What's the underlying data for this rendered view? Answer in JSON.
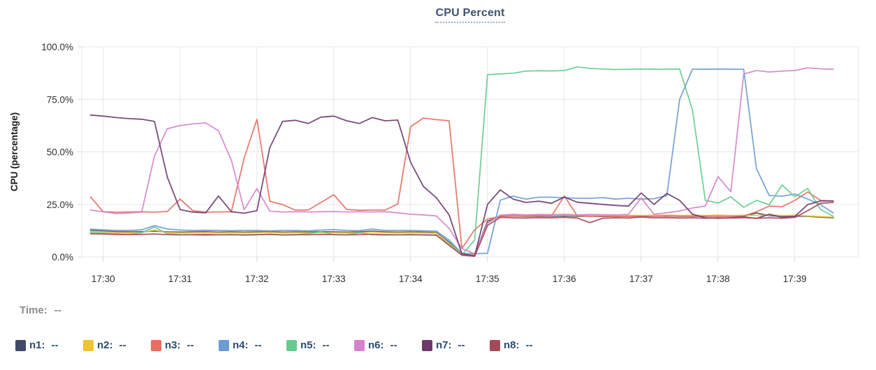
{
  "chart_data": {
    "type": "line",
    "title": "CPU Percent",
    "ylabel": "CPU (percentage)",
    "ylim": [
      0,
      100
    ],
    "y_tick_values": [
      0,
      25,
      50,
      75,
      100
    ],
    "y_tick_labels": [
      "0.0%",
      "25.0%",
      "50.0%",
      "75.0%",
      "100.0%"
    ],
    "x_tick_labels": [
      "17:30",
      "17:31",
      "17:32",
      "17:33",
      "17:34",
      "17:35",
      "17:36",
      "17:37",
      "17:38",
      "17:39"
    ],
    "x_tick_minutes": [
      0,
      1,
      2,
      3,
      4,
      5,
      6,
      7,
      8,
      9
    ],
    "x_range_minutes": [
      -0.28,
      9.83
    ],
    "x_start_minutes_after_17_30": -0.1667,
    "x_step_minutes": 0.1667,
    "grid": "on",
    "series": [
      {
        "name": "n1",
        "color": "#3e4a66",
        "values": [
          12.6,
          12.3,
          12.0,
          11.9,
          12.0,
          12.3,
          11.9,
          11.8,
          11.9,
          12.0,
          11.8,
          11.9,
          11.8,
          11.9,
          12.0,
          11.8,
          11.9,
          11.8,
          12.0,
          11.9,
          11.8,
          11.9,
          12.3,
          11.9,
          11.8,
          11.9,
          11.8,
          11.6,
          7.0,
          1.2,
          1.0,
          17.0,
          19.3,
          19.5,
          19.3,
          19.4,
          19.3,
          19.5,
          19.3,
          19.4,
          19.2,
          19.3,
          19.4,
          19.3,
          19.4,
          19.5,
          19.3,
          19.4,
          19.3,
          19.5,
          19.3,
          19.4,
          20.9,
          19.6,
          19.3,
          19.4,
          19.3,
          18.9,
          18.6
        ]
      },
      {
        "name": "n2",
        "color": "#f2c230",
        "values": [
          12.2,
          11.9,
          11.6,
          11.5,
          11.6,
          12.8,
          11.6,
          11.4,
          11.5,
          11.6,
          11.4,
          11.5,
          11.4,
          11.5,
          11.6,
          11.4,
          11.5,
          11.4,
          11.6,
          11.5,
          11.4,
          11.5,
          11.8,
          11.5,
          11.4,
          11.5,
          11.4,
          11.3,
          6.5,
          1.3,
          1.1,
          16.0,
          19.8,
          19.9,
          19.7,
          19.8,
          19.7,
          19.9,
          19.7,
          19.8,
          19.6,
          19.7,
          19.8,
          19.7,
          19.8,
          19.9,
          19.7,
          19.8,
          19.7,
          19.9,
          19.7,
          19.8,
          19.7,
          19.9,
          19.7,
          19.8,
          19.5,
          19.2,
          18.9
        ]
      },
      {
        "name": "n3",
        "color": "#e76e62",
        "values": [
          28.6,
          21.5,
          21.3,
          21.4,
          21.5,
          21.3,
          21.6,
          27.5,
          22.0,
          21.3,
          21.4,
          21.5,
          47.0,
          65.5,
          26.5,
          24.9,
          22.3,
          22.3,
          25.9,
          29.6,
          22.6,
          22.2,
          22.3,
          22.3,
          25.2,
          62.0,
          66.1,
          65.3,
          64.8,
          4.0,
          13.0,
          18.0,
          19.3,
          19.5,
          19.4,
          19.6,
          19.5,
          29.0,
          19.6,
          19.3,
          19.4,
          19.2,
          19.3,
          19.4,
          19.3,
          19.5,
          19.4,
          19.3,
          19.4,
          19.3,
          19.3,
          19.5,
          21.5,
          24.2,
          23.9,
          26.9,
          30.9,
          26.9,
          26.6
        ]
      },
      {
        "name": "n4",
        "color": "#6b9bd2",
        "values": [
          13.2,
          12.9,
          12.6,
          12.6,
          12.9,
          14.9,
          13.3,
          12.8,
          12.6,
          12.7,
          12.6,
          12.5,
          12.6,
          12.6,
          12.4,
          12.6,
          12.6,
          12.4,
          12.8,
          13.0,
          12.6,
          12.5,
          13.3,
          12.6,
          12.6,
          12.6,
          12.4,
          12.3,
          8.0,
          1.7,
          1.5,
          1.7,
          27.0,
          28.9,
          27.5,
          28.4,
          28.4,
          28.2,
          27.9,
          27.9,
          28.2,
          27.5,
          27.9,
          27.5,
          27.7,
          29.2,
          75.0,
          89.3,
          89.3,
          89.4,
          89.3,
          89.3,
          42.0,
          29.2,
          28.9,
          29.9,
          27.5,
          24.9,
          20.9
        ]
      },
      {
        "name": "n5",
        "color": "#66cb8e",
        "values": [
          11.6,
          11.3,
          11.0,
          10.8,
          11.5,
          14.3,
          11.0,
          10.6,
          10.5,
          10.3,
          10.5,
          10.6,
          10.3,
          10.5,
          10.8,
          10.4,
          10.5,
          11.0,
          12.0,
          10.6,
          10.5,
          11.5,
          10.5,
          10.4,
          10.5,
          10.6,
          10.4,
          10.3,
          6.0,
          1.0,
          8.0,
          86.7,
          87.1,
          87.4,
          88.4,
          88.6,
          88.5,
          88.7,
          90.4,
          89.7,
          89.4,
          89.2,
          89.3,
          89.4,
          89.3,
          89.3,
          89.4,
          70.0,
          27.0,
          25.6,
          28.6,
          23.6,
          26.9,
          24.9,
          34.2,
          28.6,
          32.6,
          22.6,
          19.3
        ]
      },
      {
        "name": "n6",
        "color": "#d583cb",
        "values": [
          22.3,
          21.5,
          20.6,
          20.9,
          21.3,
          48.0,
          61.0,
          62.5,
          63.3,
          63.8,
          60.0,
          46.0,
          22.5,
          32.5,
          21.8,
          21.4,
          21.5,
          21.4,
          21.5,
          21.6,
          21.4,
          21.5,
          21.4,
          21.5,
          21.0,
          20.3,
          20.0,
          19.5,
          13.6,
          4.0,
          1.5,
          16.0,
          19.9,
          20.3,
          20.0,
          20.2,
          20.1,
          20.3,
          20.0,
          20.2,
          20.1,
          20.0,
          20.2,
          28.0,
          20.3,
          21.0,
          21.9,
          23.3,
          24.2,
          38.2,
          31.0,
          87.0,
          88.7,
          88.0,
          88.4,
          88.7,
          90.0,
          89.5,
          89.3
        ]
      },
      {
        "name": "n7",
        "color": "#6e3a6c",
        "values": [
          67.5,
          67.0,
          66.3,
          65.8,
          65.5,
          64.5,
          38.0,
          22.5,
          21.3,
          21.0,
          29.0,
          21.5,
          20.8,
          22.0,
          52.0,
          64.5,
          65.0,
          63.5,
          66.5,
          67.0,
          64.8,
          63.5,
          66.3,
          64.8,
          65.1,
          45.0,
          33.5,
          28.2,
          20.0,
          1.5,
          0.5,
          25.0,
          31.9,
          27.5,
          25.9,
          26.5,
          25.5,
          28.5,
          26.0,
          25.5,
          25.0,
          24.5,
          24.2,
          30.4,
          25.0,
          30.2,
          26.9,
          20.3,
          18.6,
          18.4,
          18.6,
          19.0,
          18.3,
          20.3,
          18.8,
          19.3,
          24.9,
          26.6,
          26.6
        ]
      },
      {
        "name": "n8",
        "color": "#a34a58",
        "values": [
          11.0,
          10.9,
          10.7,
          10.6,
          10.7,
          10.9,
          10.6,
          10.5,
          10.6,
          10.7,
          10.5,
          10.6,
          10.5,
          10.6,
          10.7,
          10.5,
          10.6,
          10.5,
          10.7,
          10.6,
          10.5,
          10.6,
          10.8,
          10.6,
          10.5,
          10.6,
          10.5,
          10.4,
          5.5,
          0.8,
          0.3,
          15.0,
          18.8,
          18.6,
          18.5,
          18.7,
          18.6,
          18.8,
          18.5,
          16.3,
          18.4,
          18.6,
          18.5,
          19.0,
          18.6,
          18.7,
          18.5,
          18.6,
          18.4,
          18.6,
          18.5,
          18.7,
          18.4,
          18.6,
          18.4,
          18.8,
          22.0,
          25.5,
          25.9
        ]
      }
    ]
  },
  "readout": {
    "label": "Time:",
    "value": "--"
  },
  "legend": {
    "items": [
      {
        "name": "n1",
        "label": "n1:",
        "value": "--",
        "color": "#3e4a66"
      },
      {
        "name": "n2",
        "label": "n2:",
        "value": "--",
        "color": "#f2c230"
      },
      {
        "name": "n3",
        "label": "n3:",
        "value": "--",
        "color": "#e76e62"
      },
      {
        "name": "n4",
        "label": "n4:",
        "value": "--",
        "color": "#6b9bd2"
      },
      {
        "name": "n5",
        "label": "n5:",
        "value": "--",
        "color": "#66cb8e"
      },
      {
        "name": "n6",
        "label": "n6:",
        "value": "--",
        "color": "#d583cb"
      },
      {
        "name": "n7",
        "label": "n7:",
        "value": "--",
        "color": "#6e3a6c"
      },
      {
        "name": "n8",
        "label": "n8:",
        "value": "--",
        "color": "#a34a58"
      }
    ]
  },
  "style": {
    "grid_color": "#e7e7e9",
    "tick_color": "#d9d9dc",
    "tick_label_color": "#2f2f33",
    "axis_label_color": "#1c1c1e",
    "title_color": "#3e5174"
  }
}
